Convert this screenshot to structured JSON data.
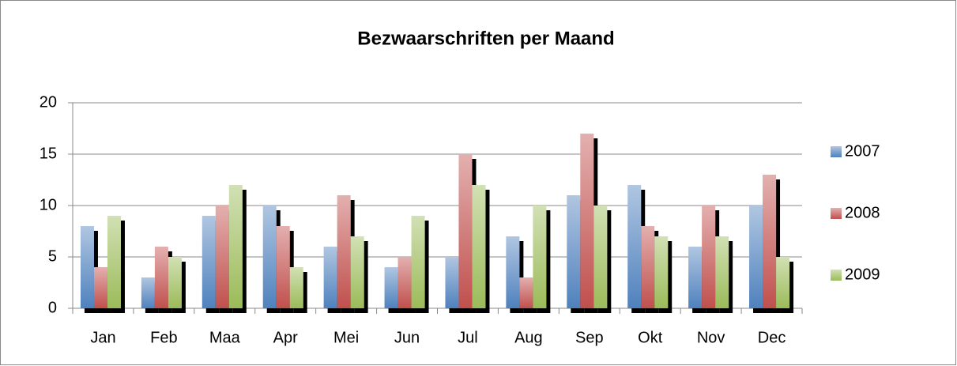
{
  "chart_data": {
    "type": "bar",
    "title": "Bezwaarschriften per Maand",
    "categories": [
      "Jan",
      "Feb",
      "Maa",
      "Apr",
      "Mei",
      "Jun",
      "Jul",
      "Aug",
      "Sep",
      "Okt",
      "Nov",
      "Dec"
    ],
    "series": [
      {
        "name": "2007",
        "color": "#4f81bd",
        "values": [
          8,
          3,
          9,
          10,
          6,
          4,
          5,
          7,
          11,
          12,
          6,
          10
        ]
      },
      {
        "name": "2008",
        "color": "#c0504d",
        "values": [
          4,
          6,
          10,
          8,
          11,
          5,
          15,
          3,
          17,
          8,
          10,
          13
        ]
      },
      {
        "name": "2009",
        "color": "#9bbb59",
        "values": [
          9,
          5,
          12,
          4,
          7,
          9,
          12,
          10,
          10,
          7,
          7,
          5
        ]
      }
    ],
    "ylim": [
      0,
      20
    ],
    "yticks": [
      0,
      5,
      10,
      15,
      20
    ],
    "grid": true,
    "legend": "right"
  }
}
